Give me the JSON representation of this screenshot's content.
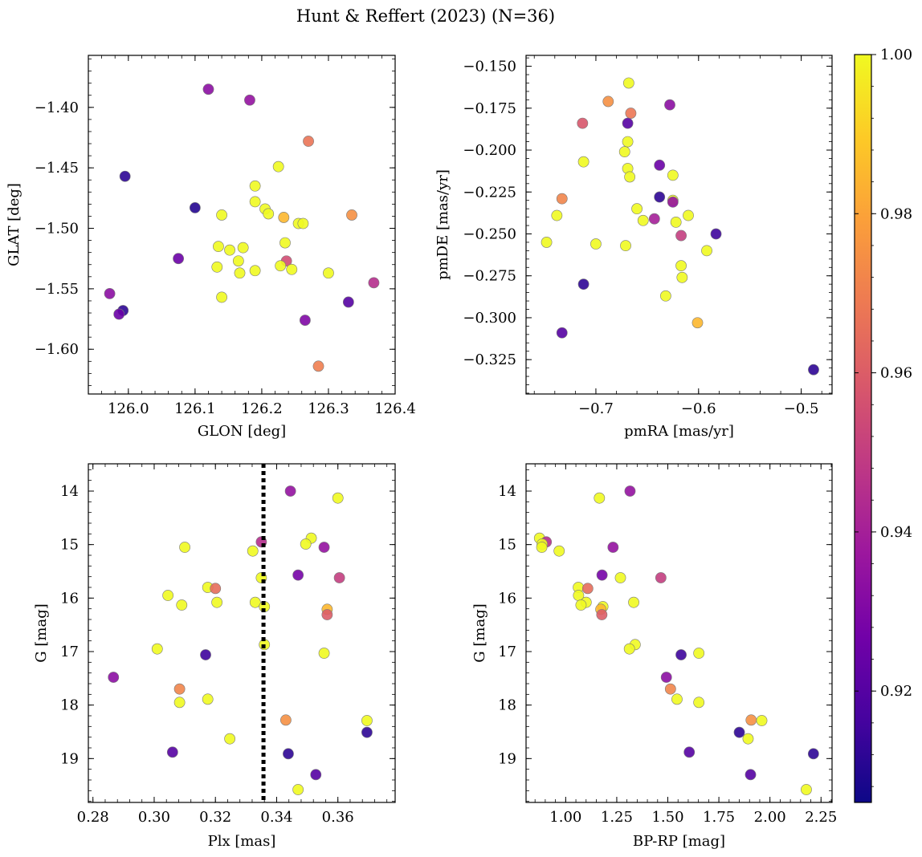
{
  "figure": {
    "title": "Hunt & Reffert (2023) (N=36)"
  },
  "colorbar": {
    "min": 0.906,
    "max": 1.0,
    "ticks": [
      0.92,
      0.94,
      0.96,
      0.98,
      1.0
    ],
    "tick_labels": [
      "0.92",
      "0.94",
      "0.96",
      "0.98",
      "1.00"
    ],
    "colormap": "plasma",
    "colormap_stops": [
      "#0d0887",
      "#46039f",
      "#7201a8",
      "#9c179e",
      "#bd3786",
      "#d8576b",
      "#ed7953",
      "#fb9f3a",
      "#fdca26",
      "#f0f921"
    ]
  },
  "chart_data": [
    {
      "type": "scatter",
      "xlabel": "GLON [deg]",
      "ylabel": "GLAT [deg]",
      "xlim": [
        125.94,
        126.4
      ],
      "ylim": [
        -1.637,
        -1.357
      ],
      "xticks": [
        126.0,
        126.1,
        126.2,
        126.3,
        126.4
      ],
      "xtick_labels": [
        "126.0",
        "126.1",
        "126.2",
        "126.3",
        "126.4"
      ],
      "yticks": [
        -1.4,
        -1.45,
        -1.5,
        -1.55,
        -1.6
      ],
      "ytick_labels": [
        "−1.40",
        "−1.45",
        "−1.50",
        "−1.55",
        "−1.60"
      ],
      "points": [
        {
          "x": 126.12,
          "y": -1.385,
          "c": 0.933
        },
        {
          "x": 126.182,
          "y": -1.394,
          "c": 0.935
        },
        {
          "x": 126.27,
          "y": -1.428,
          "c": 0.967
        },
        {
          "x": 125.995,
          "y": -1.457,
          "c": 0.912
        },
        {
          "x": 126.225,
          "y": -1.449,
          "c": 1.0
        },
        {
          "x": 126.19,
          "y": -1.465,
          "c": 1.0
        },
        {
          "x": 126.19,
          "y": -1.478,
          "c": 1.0
        },
        {
          "x": 126.1,
          "y": -1.483,
          "c": 0.91
        },
        {
          "x": 126.205,
          "y": -1.484,
          "c": 1.0
        },
        {
          "x": 126.21,
          "y": -1.488,
          "c": 1.0
        },
        {
          "x": 126.14,
          "y": -1.489,
          "c": 1.0
        },
        {
          "x": 126.233,
          "y": -1.491,
          "c": 0.985
        },
        {
          "x": 126.255,
          "y": -1.496,
          "c": 1.0
        },
        {
          "x": 126.262,
          "y": -1.496,
          "c": 1.0
        },
        {
          "x": 126.335,
          "y": -1.489,
          "c": 0.975
        },
        {
          "x": 126.235,
          "y": -1.512,
          "c": 1.0
        },
        {
          "x": 126.135,
          "y": -1.515,
          "c": 1.0
        },
        {
          "x": 126.172,
          "y": -1.516,
          "c": 1.0
        },
        {
          "x": 126.152,
          "y": -1.518,
          "c": 1.0
        },
        {
          "x": 126.075,
          "y": -1.525,
          "c": 0.925
        },
        {
          "x": 126.165,
          "y": -1.527,
          "c": 1.0
        },
        {
          "x": 126.237,
          "y": -1.527,
          "c": 0.955
        },
        {
          "x": 126.228,
          "y": -1.531,
          "c": 1.0
        },
        {
          "x": 126.133,
          "y": -1.532,
          "c": 1.0
        },
        {
          "x": 126.245,
          "y": -1.534,
          "c": 1.0
        },
        {
          "x": 126.19,
          "y": -1.535,
          "c": 1.0
        },
        {
          "x": 126.167,
          "y": -1.537,
          "c": 1.0
        },
        {
          "x": 126.3,
          "y": -1.537,
          "c": 1.0
        },
        {
          "x": 126.368,
          "y": -1.545,
          "c": 0.945
        },
        {
          "x": 125.972,
          "y": -1.554,
          "c": 0.933
        },
        {
          "x": 126.14,
          "y": -1.557,
          "c": 1.0
        },
        {
          "x": 126.33,
          "y": -1.561,
          "c": 0.92
        },
        {
          "x": 125.992,
          "y": -1.568,
          "c": 0.912
        },
        {
          "x": 125.986,
          "y": -1.571,
          "c": 0.925
        },
        {
          "x": 126.265,
          "y": -1.576,
          "c": 0.93
        },
        {
          "x": 126.285,
          "y": -1.614,
          "c": 0.97
        }
      ]
    },
    {
      "type": "scatter",
      "xlabel": "pmRA [mas/yr]",
      "ylabel": "pmDE [mas/yr]",
      "xlim": [
        -0.768,
        -0.47
      ],
      "ylim": [
        -0.3455,
        -0.1435
      ],
      "xticks": [
        -0.7,
        -0.6,
        -0.5
      ],
      "xtick_labels": [
        "−0.7",
        "−0.6",
        "−0.5"
      ],
      "yticks": [
        -0.15,
        -0.175,
        -0.2,
        -0.225,
        -0.25,
        -0.275,
        -0.3,
        -0.325
      ],
      "ytick_labels": [
        "−0.150",
        "−0.175",
        "−0.200",
        "−0.225",
        "−0.250",
        "−0.275",
        "−0.300",
        "−0.325"
      ],
      "points": [
        {
          "x": -0.668,
          "y": -0.16,
          "c": 1.0
        },
        {
          "x": -0.688,
          "y": -0.171,
          "c": 0.975
        },
        {
          "x": -0.666,
          "y": -0.178,
          "c": 0.968
        },
        {
          "x": -0.628,
          "y": -0.173,
          "c": 0.933
        },
        {
          "x": -0.713,
          "y": -0.184,
          "c": 0.958
        },
        {
          "x": -0.669,
          "y": -0.184,
          "c": 0.92
        },
        {
          "x": -0.669,
          "y": -0.195,
          "c": 1.0
        },
        {
          "x": -0.672,
          "y": -0.201,
          "c": 1.0
        },
        {
          "x": -0.712,
          "y": -0.207,
          "c": 1.0
        },
        {
          "x": -0.638,
          "y": -0.209,
          "c": 0.925
        },
        {
          "x": -0.669,
          "y": -0.211,
          "c": 1.0
        },
        {
          "x": -0.667,
          "y": -0.216,
          "c": 1.0
        },
        {
          "x": -0.625,
          "y": -0.215,
          "c": 1.0
        },
        {
          "x": -0.638,
          "y": -0.228,
          "c": 0.912
        },
        {
          "x": -0.733,
          "y": -0.229,
          "c": 0.972
        },
        {
          "x": -0.625,
          "y": -0.23,
          "c": 1.0
        },
        {
          "x": -0.625,
          "y": -0.231,
          "c": 0.935
        },
        {
          "x": -0.66,
          "y": -0.235,
          "c": 1.0
        },
        {
          "x": -0.738,
          "y": -0.239,
          "c": 1.0
        },
        {
          "x": -0.61,
          "y": -0.239,
          "c": 1.0
        },
        {
          "x": -0.643,
          "y": -0.241,
          "c": 0.94
        },
        {
          "x": -0.654,
          "y": -0.242,
          "c": 1.0
        },
        {
          "x": -0.622,
          "y": -0.243,
          "c": 1.0
        },
        {
          "x": -0.617,
          "y": -0.251,
          "c": 0.95
        },
        {
          "x": -0.583,
          "y": -0.25,
          "c": 0.915
        },
        {
          "x": -0.748,
          "y": -0.255,
          "c": 1.0
        },
        {
          "x": -0.7,
          "y": -0.256,
          "c": 1.0
        },
        {
          "x": -0.671,
          "y": -0.257,
          "c": 1.0
        },
        {
          "x": -0.592,
          "y": -0.26,
          "c": 1.0
        },
        {
          "x": -0.617,
          "y": -0.269,
          "c": 1.0
        },
        {
          "x": -0.616,
          "y": -0.276,
          "c": 1.0
        },
        {
          "x": -0.712,
          "y": -0.28,
          "c": 0.912
        },
        {
          "x": -0.632,
          "y": -0.287,
          "c": 1.0
        },
        {
          "x": -0.601,
          "y": -0.303,
          "c": 0.985
        },
        {
          "x": -0.733,
          "y": -0.309,
          "c": 0.92
        },
        {
          "x": -0.488,
          "y": -0.331,
          "c": 0.912
        }
      ]
    },
    {
      "type": "scatter",
      "xlabel": "Plx [mas]",
      "ylabel": "G [mag]",
      "xlim": [
        0.2785,
        0.3787
      ],
      "ylim": [
        19.82,
        13.49
      ],
      "xticks": [
        0.28,
        0.3,
        0.32,
        0.34,
        0.36
      ],
      "xtick_labels": [
        "0.28",
        "0.30",
        "0.32",
        "0.34",
        "0.36"
      ],
      "yticks": [
        14,
        15,
        16,
        17,
        18,
        19
      ],
      "ytick_labels": [
        "14",
        "15",
        "16",
        "17",
        "18",
        "19"
      ],
      "vline_x": 0.3357,
      "points": [
        {
          "x": 0.3445,
          "y": 14.0,
          "c": 0.935
        },
        {
          "x": 0.36,
          "y": 14.13,
          "c": 1.0
        },
        {
          "x": 0.3513,
          "y": 14.88,
          "c": 1.0
        },
        {
          "x": 0.335,
          "y": 14.95,
          "c": 0.945
        },
        {
          "x": 0.3495,
          "y": 14.99,
          "c": 1.0
        },
        {
          "x": 0.31,
          "y": 15.05,
          "c": 1.0
        },
        {
          "x": 0.3555,
          "y": 15.05,
          "c": 0.935
        },
        {
          "x": 0.3322,
          "y": 15.12,
          "c": 1.0
        },
        {
          "x": 0.347,
          "y": 15.57,
          "c": 0.928
        },
        {
          "x": 0.3605,
          "y": 15.62,
          "c": 0.95
        },
        {
          "x": 0.335,
          "y": 15.62,
          "c": 1.0
        },
        {
          "x": 0.3175,
          "y": 15.8,
          "c": 1.0
        },
        {
          "x": 0.32,
          "y": 15.82,
          "c": 0.965
        },
        {
          "x": 0.3045,
          "y": 15.95,
          "c": 1.0
        },
        {
          "x": 0.3205,
          "y": 16.08,
          "c": 1.0
        },
        {
          "x": 0.333,
          "y": 16.08,
          "c": 1.0
        },
        {
          "x": 0.309,
          "y": 16.13,
          "c": 1.0
        },
        {
          "x": 0.336,
          "y": 16.16,
          "c": 1.0
        },
        {
          "x": 0.3565,
          "y": 16.21,
          "c": 0.985
        },
        {
          "x": 0.3565,
          "y": 16.31,
          "c": 0.96
        },
        {
          "x": 0.336,
          "y": 16.87,
          "c": 1.0
        },
        {
          "x": 0.301,
          "y": 16.95,
          "c": 1.0
        },
        {
          "x": 0.3555,
          "y": 17.03,
          "c": 1.0
        },
        {
          "x": 0.3168,
          "y": 17.06,
          "c": 0.915
        },
        {
          "x": 0.2867,
          "y": 17.48,
          "c": 0.933
        },
        {
          "x": 0.3083,
          "y": 17.7,
          "c": 0.972
        },
        {
          "x": 0.3175,
          "y": 17.89,
          "c": 1.0
        },
        {
          "x": 0.3083,
          "y": 17.95,
          "c": 1.0
        },
        {
          "x": 0.343,
          "y": 18.28,
          "c": 0.975
        },
        {
          "x": 0.3695,
          "y": 18.29,
          "c": 1.0
        },
        {
          "x": 0.3695,
          "y": 18.51,
          "c": 0.912
        },
        {
          "x": 0.3247,
          "y": 18.63,
          "c": 1.0
        },
        {
          "x": 0.306,
          "y": 18.88,
          "c": 0.92
        },
        {
          "x": 0.3438,
          "y": 18.91,
          "c": 0.912
        },
        {
          "x": 0.3528,
          "y": 19.3,
          "c": 0.92
        },
        {
          "x": 0.347,
          "y": 19.58,
          "c": 1.0
        }
      ]
    },
    {
      "type": "scatter",
      "xlabel": "BP-RP [mag]",
      "ylabel": "G [mag]",
      "xlim": [
        0.806,
        2.304
      ],
      "ylim": [
        19.82,
        13.49
      ],
      "xticks": [
        1.0,
        1.25,
        1.5,
        1.75,
        2.0,
        2.25
      ],
      "xtick_labels": [
        "1.00",
        "1.25",
        "1.50",
        "1.75",
        "2.00",
        "2.25"
      ],
      "yticks": [
        14,
        15,
        16,
        17,
        18,
        19
      ],
      "ytick_labels": [
        "14",
        "15",
        "16",
        "17",
        "18",
        "19"
      ],
      "points": [
        {
          "x": 1.315,
          "y": 14.0,
          "c": 0.935
        },
        {
          "x": 1.165,
          "y": 14.13,
          "c": 1.0
        },
        {
          "x": 0.872,
          "y": 14.88,
          "c": 1.0
        },
        {
          "x": 0.905,
          "y": 14.95,
          "c": 0.945
        },
        {
          "x": 0.885,
          "y": 14.99,
          "c": 1.0
        },
        {
          "x": 0.883,
          "y": 15.05,
          "c": 1.0
        },
        {
          "x": 1.232,
          "y": 15.05,
          "c": 0.935
        },
        {
          "x": 0.968,
          "y": 15.12,
          "c": 1.0
        },
        {
          "x": 1.178,
          "y": 15.57,
          "c": 0.928
        },
        {
          "x": 1.466,
          "y": 15.62,
          "c": 0.95
        },
        {
          "x": 1.268,
          "y": 15.62,
          "c": 1.0
        },
        {
          "x": 1.062,
          "y": 15.8,
          "c": 1.0
        },
        {
          "x": 1.108,
          "y": 15.82,
          "c": 0.965
        },
        {
          "x": 1.063,
          "y": 15.95,
          "c": 1.0
        },
        {
          "x": 1.1,
          "y": 16.08,
          "c": 1.0
        },
        {
          "x": 1.333,
          "y": 16.08,
          "c": 1.0
        },
        {
          "x": 1.075,
          "y": 16.13,
          "c": 1.0
        },
        {
          "x": 1.182,
          "y": 16.16,
          "c": 1.0
        },
        {
          "x": 1.172,
          "y": 16.21,
          "c": 0.985
        },
        {
          "x": 1.177,
          "y": 16.31,
          "c": 0.96
        },
        {
          "x": 1.34,
          "y": 16.87,
          "c": 1.0
        },
        {
          "x": 1.312,
          "y": 16.95,
          "c": 1.0
        },
        {
          "x": 1.652,
          "y": 17.03,
          "c": 1.0
        },
        {
          "x": 1.565,
          "y": 17.06,
          "c": 0.915
        },
        {
          "x": 1.493,
          "y": 17.48,
          "c": 0.933
        },
        {
          "x": 1.513,
          "y": 17.7,
          "c": 0.972
        },
        {
          "x": 1.545,
          "y": 17.89,
          "c": 1.0
        },
        {
          "x": 1.652,
          "y": 17.95,
          "c": 1.0
        },
        {
          "x": 1.908,
          "y": 18.28,
          "c": 0.975
        },
        {
          "x": 1.96,
          "y": 18.29,
          "c": 1.0
        },
        {
          "x": 1.85,
          "y": 18.51,
          "c": 0.912
        },
        {
          "x": 1.893,
          "y": 18.63,
          "c": 1.0
        },
        {
          "x": 1.605,
          "y": 18.88,
          "c": 0.92
        },
        {
          "x": 2.213,
          "y": 18.91,
          "c": 0.912
        },
        {
          "x": 1.905,
          "y": 19.3,
          "c": 0.92
        },
        {
          "x": 2.178,
          "y": 19.58,
          "c": 1.0
        }
      ]
    }
  ]
}
